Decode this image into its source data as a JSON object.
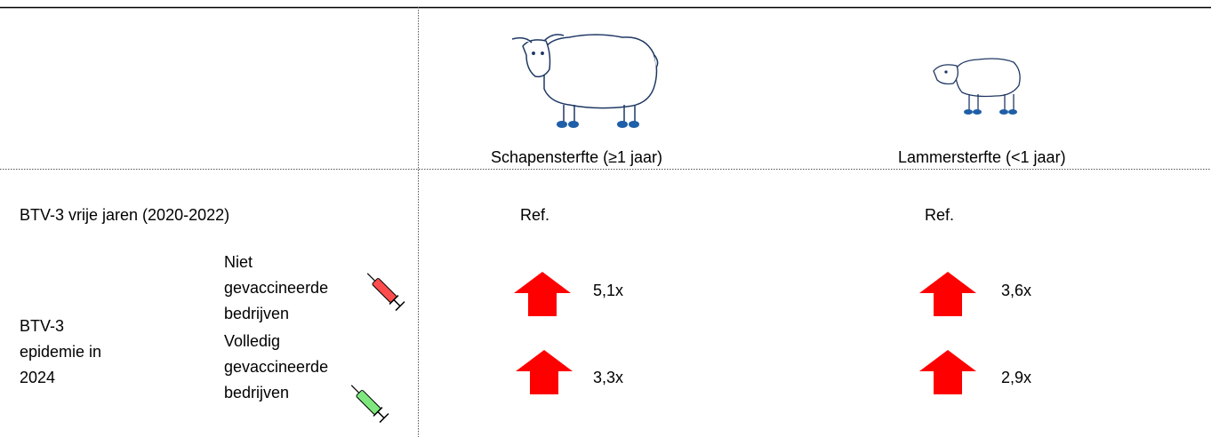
{
  "header": {
    "columns": [
      "Schapensterfte (≥1 jaar)",
      "Lammersterfte (<1 jaar)"
    ]
  },
  "rows": [
    {
      "label": "BTV-3 vrije jaren (2020-2022)",
      "values": [
        "Ref.",
        "Ref."
      ]
    },
    {
      "group": "BTV-3 epidemie in 2024",
      "subrows": [
        {
          "label": "Niet gevaccineerde bedrijven",
          "values": [
            "5,1x",
            "3,6x"
          ]
        },
        {
          "label": "Volledig gevaccineerde bedrijven",
          "values": [
            "3,3x",
            "2,9x"
          ]
        }
      ]
    }
  ]
}
